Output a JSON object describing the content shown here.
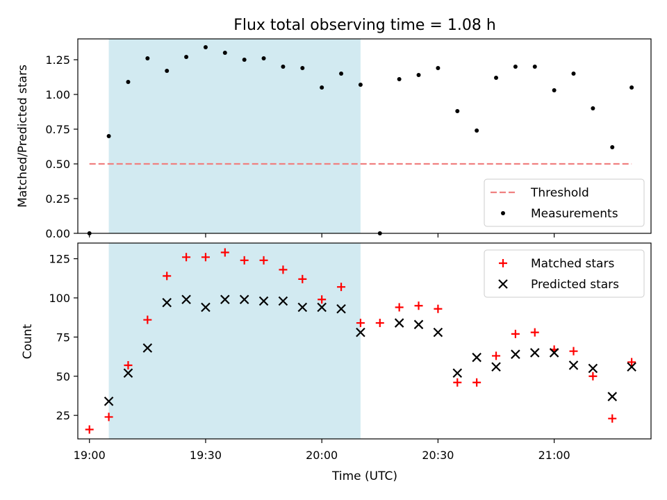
{
  "title": "Flux total observing time = 1.08 h",
  "xlabel": "Time (UTC)",
  "colors": {
    "shade": "#add8e6",
    "threshold": "#f08080",
    "matched": "#ff0000",
    "predicted": "#000000",
    "measurement": "#000000"
  },
  "chart_data": [
    {
      "type": "scatter",
      "ylabel": "Matched/Predicted stars",
      "xlim": [
        "18:57",
        "21:25"
      ],
      "ylim": [
        0,
        1.4
      ],
      "x_ticks": [
        "19:00",
        "19:30",
        "20:00",
        "20:30",
        "21:00"
      ],
      "y_ticks": [
        "0.00",
        "0.25",
        "0.50",
        "0.75",
        "1.00",
        "1.25"
      ],
      "shaded_region": {
        "x_start": "19:05",
        "x_end": "20:10"
      },
      "legend_position": "lower right",
      "threshold": {
        "name": "Threshold",
        "value": 0.5,
        "x_start": "19:00",
        "x_end": "21:20",
        "style": "dashed"
      },
      "series": [
        {
          "name": "Measurements",
          "x": [
            "19:00",
            "19:05",
            "19:10",
            "19:15",
            "19:20",
            "19:25",
            "19:30",
            "19:35",
            "19:40",
            "19:45",
            "19:50",
            "19:55",
            "20:00",
            "20:05",
            "20:10",
            "20:15",
            "20:20",
            "20:25",
            "20:30",
            "20:35",
            "20:40",
            "20:45",
            "20:50",
            "20:55",
            "21:00",
            "21:05",
            "21:10",
            "21:15",
            "21:20"
          ],
          "y": [
            0.0,
            0.7,
            1.09,
            1.26,
            1.17,
            1.27,
            1.34,
            1.3,
            1.25,
            1.26,
            1.2,
            1.19,
            1.05,
            1.15,
            1.07,
            0.0,
            1.11,
            1.14,
            1.19,
            0.88,
            0.74,
            1.12,
            1.2,
            1.2,
            1.03,
            1.15,
            0.9,
            0.62,
            1.05
          ]
        }
      ]
    },
    {
      "type": "scatter",
      "ylabel": "Count",
      "xlim": [
        "18:57",
        "21:25"
      ],
      "ylim": [
        10,
        135
      ],
      "x_ticks": [
        "19:00",
        "19:30",
        "20:00",
        "20:30",
        "21:00"
      ],
      "y_ticks": [
        "25",
        "50",
        "75",
        "100",
        "125"
      ],
      "shaded_region": {
        "x_start": "19:05",
        "x_end": "20:10"
      },
      "legend_position": "upper right",
      "series": [
        {
          "name": "Matched stars",
          "marker": "+",
          "x": [
            "19:00",
            "19:05",
            "19:10",
            "19:15",
            "19:20",
            "19:25",
            "19:30",
            "19:35",
            "19:40",
            "19:45",
            "19:50",
            "19:55",
            "20:00",
            "20:05",
            "20:10",
            "20:15",
            "20:20",
            "20:25",
            "20:30",
            "20:35",
            "20:40",
            "20:45",
            "20:50",
            "20:55",
            "21:00",
            "21:05",
            "21:10",
            "21:15",
            "21:20"
          ],
          "y": [
            16,
            24,
            57,
            86,
            114,
            126,
            126,
            129,
            124,
            124,
            118,
            112,
            99,
            107,
            84,
            84,
            94,
            95,
            93,
            46,
            46,
            63,
            77,
            78,
            67,
            66,
            50,
            23,
            59
          ]
        },
        {
          "name": "Predicted stars",
          "marker": "x",
          "x": [
            "19:05",
            "19:10",
            "19:15",
            "19:20",
            "19:25",
            "19:30",
            "19:35",
            "19:40",
            "19:45",
            "19:50",
            "19:55",
            "20:00",
            "20:05",
            "20:10",
            "20:20",
            "20:25",
            "20:30",
            "20:35",
            "20:40",
            "20:45",
            "20:50",
            "20:55",
            "21:00",
            "21:05",
            "21:10",
            "21:15",
            "21:20"
          ],
          "y": [
            34,
            52,
            68,
            97,
            99,
            94,
            99,
            99,
            98,
            98,
            94,
            94,
            93,
            78,
            84,
            83,
            78,
            52,
            62,
            56,
            64,
            65,
            65,
            57,
            55,
            37,
            56
          ]
        }
      ]
    }
  ]
}
